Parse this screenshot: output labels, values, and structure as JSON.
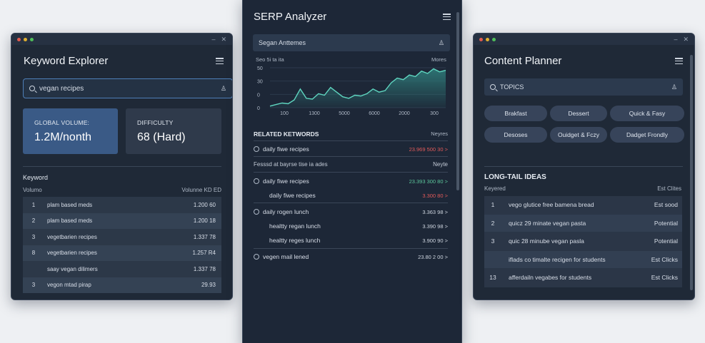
{
  "keyword_explorer": {
    "title": "Keyword Explorer",
    "search_value": "vegan recipes",
    "metrics": [
      {
        "label": "GLOBAL VOLUME:",
        "value": "1.2M/nonth"
      },
      {
        "label": "DIFFICULTY",
        "value": "68 (Hard)"
      }
    ],
    "table_title": "Keyword",
    "col_left": "Volumo",
    "col_right": "Volunne  KD  ED",
    "rows": [
      {
        "n": "1",
        "k": "plam based meds",
        "v": "1.200 60"
      },
      {
        "n": "2",
        "k": "plam based meds",
        "v": "1.200 18"
      },
      {
        "n": "3",
        "k": "vegetbarien recipes",
        "v": "1.337 78"
      },
      {
        "n": "8",
        "k": "vegetbarien recipes",
        "v": "1.257 R4"
      },
      {
        "n": "",
        "k": "saay vegan dilimers",
        "v": "1.337 78"
      },
      {
        "n": "3",
        "k": "vegon mtad pirap",
        "v": "29.93"
      }
    ]
  },
  "serp_analyzer": {
    "title": "SERP Analyzer",
    "search_value": "Segan Anttemes",
    "chart_label_left": "Seo 5i ta ita",
    "chart_label_right": "Mores",
    "related_title": "RELATED KETWORDS",
    "related_col": "Neyres",
    "subheader_left": "Fesssd at bayrse tise ia ades",
    "subheader_right": "Neyte",
    "rows_top": [
      {
        "k": "daily fiwe recipes",
        "v": "23.969 500 30 >",
        "tone": "red"
      }
    ],
    "rows_bottom": [
      {
        "k": "daily fiwe recipes",
        "v": "23.393 300 80 >",
        "tone": "green",
        "icon": true
      },
      {
        "k": "daily fiwe recipes",
        "v": "3.300 80 >",
        "tone": "red",
        "icon": false
      },
      {
        "k": "daily rogen lunch",
        "v": "3.363 98 >",
        "tone": "plain",
        "icon": true
      },
      {
        "k": "healtty regan lunch",
        "v": "3.390 98 >",
        "tone": "plain",
        "icon": false
      },
      {
        "k": "healtty reges lunch",
        "v": "3.900 90 >",
        "tone": "plain",
        "icon": false
      },
      {
        "k": "vegen mail lened",
        "v": "23.80 2 00 >",
        "tone": "plain",
        "icon": true
      }
    ]
  },
  "content_planner": {
    "title": "Content Planner",
    "search_value": "TOPICS",
    "chips": [
      "Brakfast",
      "Dessert",
      "Quick & Fasy",
      "Desoses",
      "Ouidget & Fczy",
      "Dadget Frondly"
    ],
    "longtail_title": "LONG-TAIL IDEAS",
    "col_left": "Keyered",
    "col_right": "Est Clites",
    "rows": [
      {
        "n": "1",
        "k": "vego glutice free bamena bread",
        "v": "Est sood"
      },
      {
        "n": "2",
        "k": "quicz 29 minate vegan pasta",
        "v": "Potential"
      },
      {
        "n": "3",
        "k": "quic 28 minube vegan pasla",
        "v": "Potential"
      },
      {
        "n": "",
        "k": "iflads co timalte recigen for students",
        "v": "Est Clicks"
      },
      {
        "n": "13",
        "k": "afferdailn vegabes for students",
        "v": "Est Clicks"
      }
    ]
  },
  "chart_data": {
    "type": "area",
    "x_tick_labels": [
      "100",
      "1300",
      "5000",
      "6000",
      "2000",
      "300"
    ],
    "y_tick_labels": [
      "50",
      "30",
      "0",
      "0"
    ],
    "values": [
      2,
      4,
      6,
      5,
      10,
      24,
      12,
      11,
      18,
      16,
      26,
      20,
      14,
      12,
      16,
      15,
      18,
      24,
      20,
      22,
      32,
      38,
      36,
      42,
      40,
      47,
      44,
      50,
      46,
      48
    ],
    "ylim": [
      0,
      55
    ],
    "colors": {
      "line": "#5fd6c0",
      "fill": "#2f7f7c"
    }
  }
}
